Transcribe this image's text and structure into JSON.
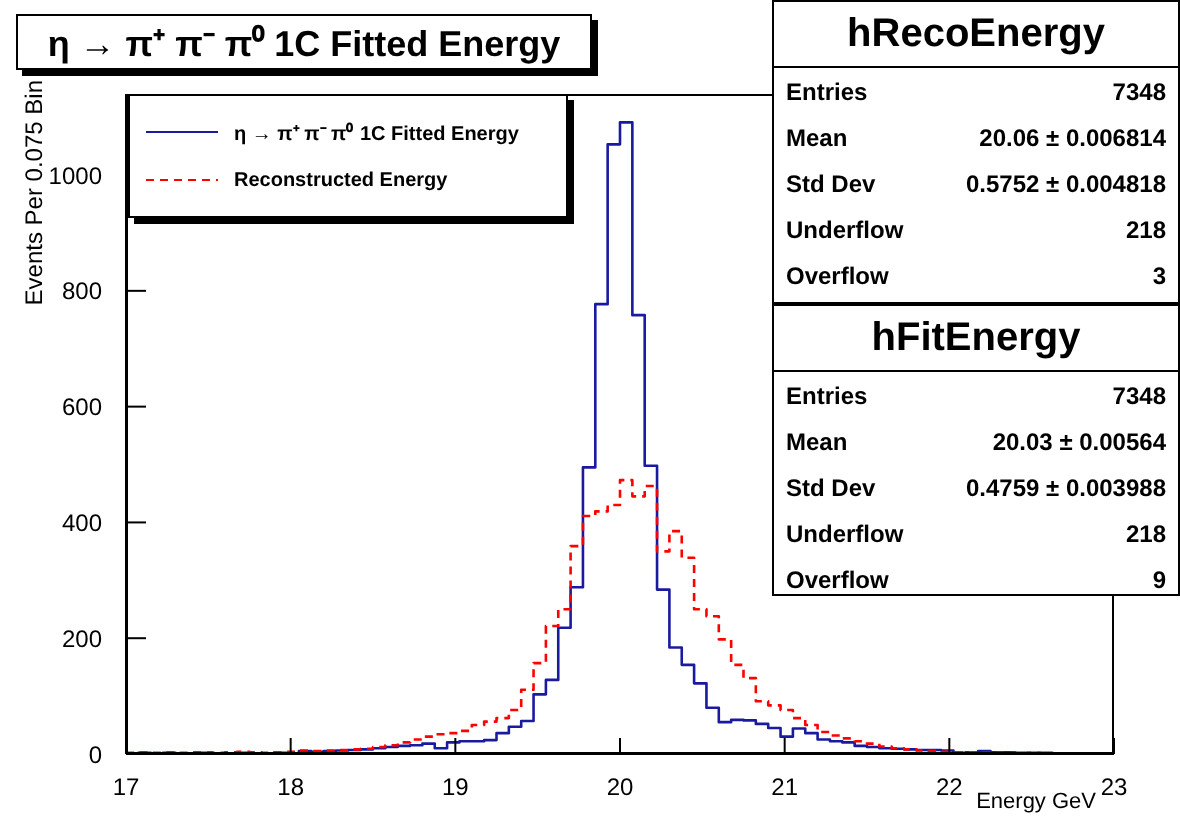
{
  "chart_data": {
    "type": "histogram",
    "title": "η → π⁺ π⁻ π⁰ 1C Fitted Energy",
    "xlabel": "Energy GeV",
    "ylabel": "Events Per 0.075 Bin",
    "bins": [
      17,
      17.075,
      17.15,
      17.225,
      17.3,
      17.375,
      17.45,
      17.525,
      17.6,
      17.675,
      17.75,
      17.825,
      17.9,
      17.975,
      18.05,
      18.125,
      18.2,
      18.275,
      18.35,
      18.425,
      18.5,
      18.575,
      18.65,
      18.725,
      18.8,
      18.875,
      18.95,
      19.025,
      19.1,
      19.175,
      19.25,
      19.325,
      19.4,
      19.475,
      19.55,
      19.625,
      19.7,
      19.775,
      19.85,
      19.925,
      20,
      20.075,
      20.15,
      20.225,
      20.3,
      20.375,
      20.45,
      20.525,
      20.6,
      20.675,
      20.75,
      20.825,
      20.9,
      20.975,
      21.05,
      21.125,
      21.2,
      21.275,
      21.35,
      21.425,
      21.5,
      21.575,
      21.65,
      21.725,
      21.8,
      21.875,
      21.95,
      22.025,
      22.1,
      22.175,
      22.25,
      22.325,
      22.4,
      22.475,
      22.55,
      22.625,
      22.7,
      22.775,
      22.85,
      22.925,
      23
    ],
    "series": [
      {
        "name": "η → π⁺ π⁻ π⁰ 1C Fitted Energy",
        "color": "#1a1aa0",
        "line_style": "solid",
        "values": [
          1,
          2,
          1,
          2,
          1,
          1,
          2,
          1,
          1,
          2,
          1,
          1,
          2,
          1,
          5,
          4,
          5,
          6,
          7,
          8,
          10,
          12,
          14,
          15,
          18,
          10,
          20,
          22,
          22,
          24,
          36,
          47,
          57,
          103,
          128,
          218,
          288,
          495,
          777,
          1053,
          1091,
          758,
          498,
          284,
          184,
          154,
          122,
          80,
          55,
          59,
          58,
          52,
          45,
          30,
          44,
          36,
          25,
          22,
          20,
          14,
          12,
          10,
          9,
          8,
          7,
          7,
          6,
          2,
          3,
          5,
          3,
          3,
          2,
          2,
          2,
          1,
          1,
          1,
          0,
          1
        ]
      },
      {
        "name": "Reconstructed Energy",
        "color": "#ff0000",
        "line_style": "dashed",
        "values": [
          2,
          3,
          2,
          3,
          2,
          3,
          3,
          2,
          3,
          4,
          3,
          2,
          3,
          4,
          6,
          5,
          6,
          7,
          8,
          9,
          12,
          15,
          20,
          25,
          30,
          34,
          36,
          40,
          50,
          56,
          62,
          76,
          111,
          157,
          221,
          250,
          359,
          411,
          419,
          430,
          473,
          445,
          463,
          350,
          385,
          339,
          250,
          238,
          198,
          154,
          131,
          91,
          84,
          76,
          62,
          50,
          38,
          32,
          27,
          22,
          18,
          13,
          10,
          8,
          6,
          5,
          4,
          3,
          3,
          2,
          2,
          2,
          1,
          2,
          1,
          1,
          1,
          1,
          0,
          1
        ]
      }
    ],
    "xlim": [
      17,
      23
    ],
    "xticks": [
      17,
      18,
      19,
      20,
      21,
      22,
      23
    ],
    "ylim": [
      0,
      1140
    ],
    "yticks": [
      0,
      200,
      400,
      600,
      800,
      1000
    ],
    "grid": false,
    "legend": "top left",
    "annotations": [
      "hRecoEnergy",
      "Entries",
      "7348",
      "Mean",
      "20.06 ± 0.006814",
      "Std Dev",
      "0.5752 ± 0.004818",
      "Underflow",
      "218",
      "Overflow",
      "3",
      "hFitEnergy",
      "Entries",
      "7348",
      "Mean",
      "20.03 ± 0.00564",
      "Std Dev",
      "0.4759 ± 0.003988",
      "Underflow",
      "218",
      "Overflow",
      "9"
    ]
  }
}
